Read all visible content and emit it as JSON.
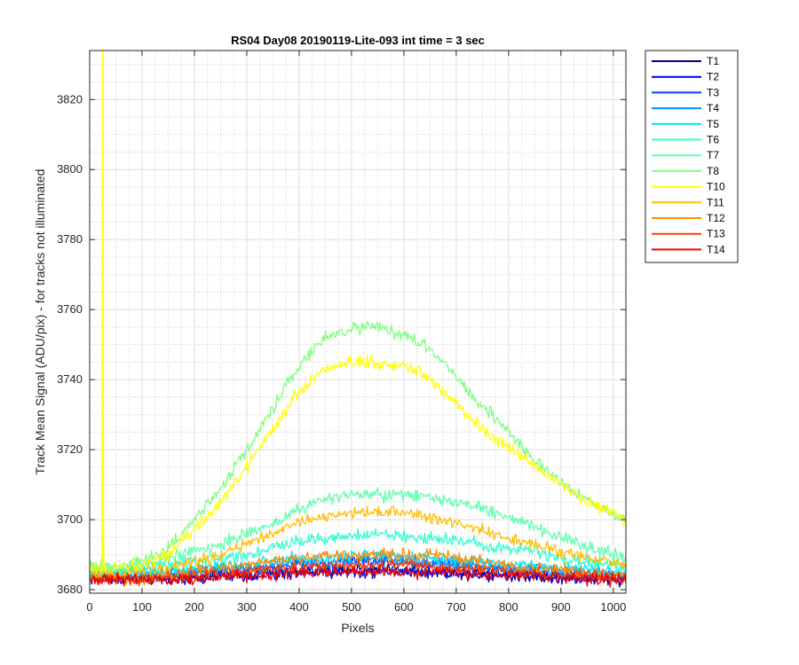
{
  "chart_data": {
    "type": "line",
    "title": "RS04 Day08 20190119-Lite-093 int time = 3 sec",
    "xlabel": "Pixels",
    "ylabel": "Track Mean Signal (ADU/pix) - for tracks not illuminated",
    "xlim": [
      0,
      1024
    ],
    "ylim": [
      3679,
      3834
    ],
    "xticks": [
      0,
      100,
      200,
      300,
      400,
      500,
      600,
      700,
      800,
      900,
      1000
    ],
    "yticks": [
      3680,
      3700,
      3720,
      3740,
      3760,
      3780,
      3800,
      3820
    ],
    "grid": true,
    "minor_grid": true,
    "legend_position": "outside-top-right",
    "x_sample": [
      0,
      50,
      100,
      150,
      200,
      250,
      300,
      350,
      400,
      450,
      500,
      550,
      600,
      650,
      700,
      750,
      800,
      850,
      900,
      950,
      1024
    ],
    "series": [
      {
        "name": "T1",
        "color": "#00008f",
        "noise": 1.2,
        "values": [
          3683,
          3683,
          3683,
          3683,
          3684,
          3684,
          3684,
          3685,
          3685,
          3685,
          3686,
          3686,
          3686,
          3685,
          3685,
          3685,
          3684,
          3684,
          3684,
          3683,
          3683
        ]
      },
      {
        "name": "T2",
        "color": "#0000ee",
        "noise": 1.2,
        "values": [
          3683,
          3683,
          3683,
          3683,
          3683,
          3684,
          3684,
          3684,
          3685,
          3685,
          3685,
          3685,
          3685,
          3685,
          3685,
          3684,
          3684,
          3684,
          3683,
          3683,
          3683
        ]
      },
      {
        "name": "T3",
        "color": "#0040ff",
        "noise": 1.2,
        "values": [
          3684,
          3684,
          3684,
          3684,
          3685,
          3685,
          3686,
          3686,
          3687,
          3687,
          3688,
          3688,
          3688,
          3687,
          3687,
          3686,
          3686,
          3685,
          3685,
          3684,
          3684
        ]
      },
      {
        "name": "T4",
        "color": "#0090ff",
        "noise": 1.2,
        "values": [
          3684,
          3684,
          3684,
          3685,
          3685,
          3686,
          3686,
          3687,
          3688,
          3688,
          3688,
          3689,
          3688,
          3688,
          3688,
          3687,
          3686,
          3686,
          3685,
          3685,
          3684
        ]
      },
      {
        "name": "T5",
        "color": "#00e0ff",
        "noise": 1.2,
        "values": [
          3685,
          3685,
          3685,
          3685,
          3686,
          3687,
          3687,
          3688,
          3689,
          3689,
          3690,
          3690,
          3689,
          3689,
          3688,
          3688,
          3687,
          3687,
          3686,
          3686,
          3685
        ]
      },
      {
        "name": "T6",
        "color": "#30ffcf",
        "noise": 1.3,
        "values": [
          3685,
          3685,
          3686,
          3687,
          3688,
          3689,
          3690,
          3692,
          3694,
          3695,
          3695,
          3696,
          3695,
          3695,
          3694,
          3693,
          3692,
          3691,
          3689,
          3688,
          3687
        ]
      },
      {
        "name": "T7",
        "color": "#60ffaf",
        "noise": 1.3,
        "values": [
          3687,
          3686,
          3687,
          3689,
          3691,
          3693,
          3696,
          3699,
          3703,
          3706,
          3707,
          3707,
          3707,
          3706,
          3705,
          3703,
          3701,
          3698,
          3695,
          3692,
          3689
        ]
      },
      {
        "name": "T8",
        "color": "#80ff80",
        "noise": 1.3,
        "values": [
          3687,
          3686,
          3688,
          3692,
          3700,
          3709,
          3720,
          3732,
          3744,
          3752,
          3755,
          3755,
          3753,
          3749,
          3741,
          3732,
          3725,
          3717,
          3711,
          3705,
          3700
        ]
      },
      {
        "name": "T10",
        "color": "#ffff00",
        "noise": 1.3,
        "values": [
          3686,
          3686,
          3687,
          3690,
          3697,
          3705,
          3715,
          3726,
          3737,
          3743,
          3745,
          3745,
          3744,
          3740,
          3733,
          3726,
          3721,
          3715,
          3710,
          3705,
          3700
        ]
      },
      {
        "name": "T11",
        "color": "#ffbf00",
        "noise": 1.2,
        "values": [
          3685,
          3684,
          3685,
          3686,
          3688,
          3690,
          3693,
          3696,
          3699,
          3701,
          3702,
          3702,
          3702,
          3701,
          3699,
          3697,
          3695,
          3693,
          3691,
          3689,
          3687
        ]
      },
      {
        "name": "T12",
        "color": "#ff9000",
        "noise": 1.2,
        "values": [
          3683,
          3683,
          3683,
          3684,
          3685,
          3686,
          3687,
          3688,
          3689,
          3690,
          3690,
          3690,
          3690,
          3690,
          3689,
          3688,
          3687,
          3686,
          3686,
          3685,
          3684
        ]
      },
      {
        "name": "T13",
        "color": "#ff4000",
        "noise": 1.2,
        "values": [
          3683,
          3683,
          3683,
          3683,
          3684,
          3684,
          3685,
          3686,
          3686,
          3687,
          3687,
          3687,
          3687,
          3687,
          3686,
          3686,
          3685,
          3685,
          3684,
          3684,
          3683
        ]
      },
      {
        "name": "T14",
        "color": "#ef0000",
        "noise": 1.2,
        "values": [
          3683,
          3683,
          3683,
          3683,
          3683,
          3684,
          3684,
          3684,
          3685,
          3685,
          3685,
          3685,
          3685,
          3685,
          3685,
          3684,
          3684,
          3684,
          3683,
          3683,
          3683
        ]
      }
    ],
    "annotations": [
      {
        "series": "T10",
        "type": "spike",
        "x": 25,
        "y": 3834
      }
    ]
  }
}
